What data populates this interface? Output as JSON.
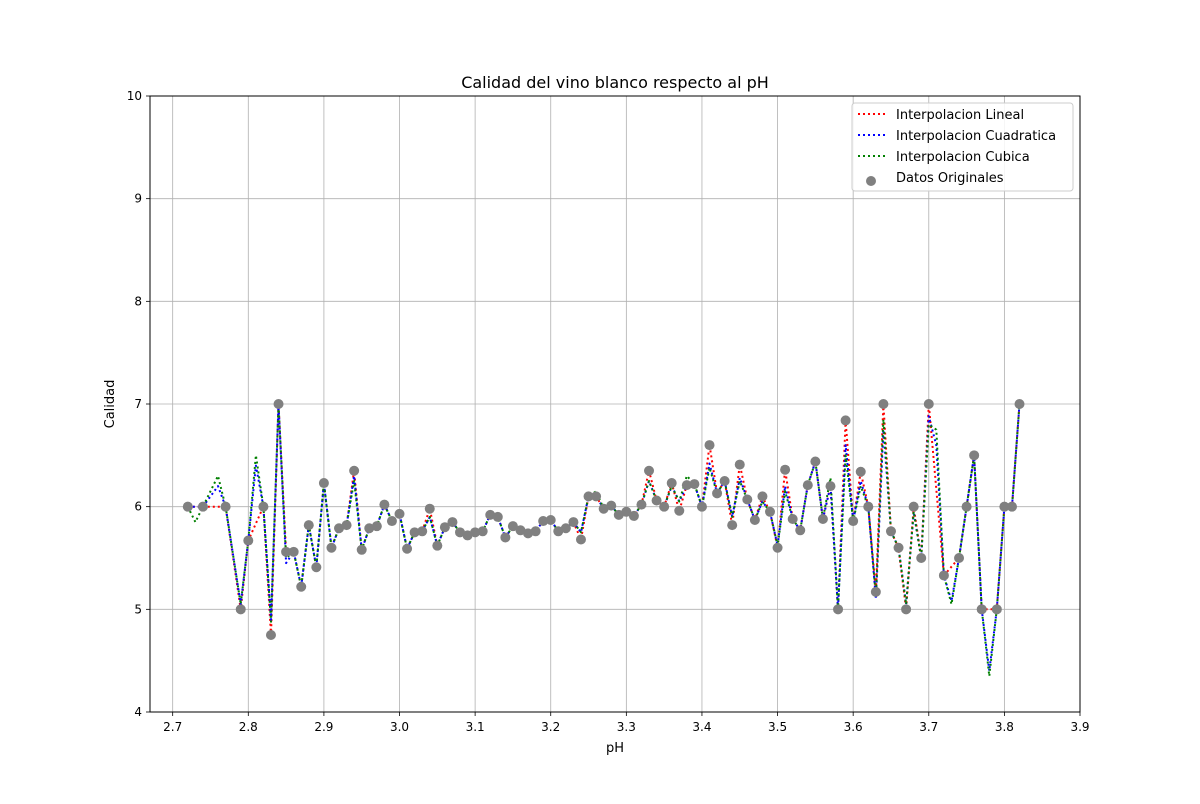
{
  "chart_data": {
    "type": "line",
    "title": "Calidad del vino blanco respecto al pH",
    "xlabel": "pH",
    "ylabel": "Calidad",
    "xlim": [
      2.67,
      3.9
    ],
    "ylim": [
      4,
      10
    ],
    "x_ticks": [
      "2.7",
      "2.8",
      "2.9",
      "3.0",
      "3.1",
      "3.2",
      "3.3",
      "3.4",
      "3.5",
      "3.6",
      "3.7",
      "3.8",
      "3.9"
    ],
    "y_ticks": [
      "4",
      "5",
      "6",
      "7",
      "8",
      "9",
      "10"
    ],
    "grid": true,
    "legend_position": "top-right",
    "series": [
      {
        "name": "Interpolacion Lineal",
        "style": "dotted-line",
        "color": "#ff0000",
        "x": [
          2.72,
          2.74,
          2.77,
          2.79,
          2.8,
          2.82,
          2.83,
          2.84,
          2.85,
          2.86,
          2.87,
          2.88,
          2.89,
          2.9,
          2.91,
          2.92,
          2.93,
          2.94,
          2.95,
          2.96,
          2.97,
          2.98,
          2.99,
          3.0,
          3.01,
          3.02,
          3.03,
          3.04,
          3.05,
          3.06,
          3.07,
          3.08,
          3.09,
          3.1,
          3.11,
          3.12,
          3.13,
          3.14,
          3.15,
          3.16,
          3.17,
          3.18,
          3.19,
          3.2,
          3.21,
          3.22,
          3.23,
          3.24,
          3.25,
          3.26,
          3.27,
          3.28,
          3.29,
          3.3,
          3.31,
          3.32,
          3.33,
          3.34,
          3.35,
          3.36,
          3.37,
          3.38,
          3.39,
          3.4,
          3.41,
          3.42,
          3.43,
          3.44,
          3.45,
          3.46,
          3.47,
          3.48,
          3.49,
          3.5,
          3.51,
          3.52,
          3.53,
          3.54,
          3.55,
          3.56,
          3.57,
          3.58,
          3.59,
          3.6,
          3.61,
          3.62,
          3.63,
          3.64,
          3.65,
          3.66,
          3.67,
          3.68,
          3.69,
          3.7,
          3.72,
          3.74,
          3.75,
          3.76,
          3.77,
          3.79,
          3.8,
          3.81,
          3.82
        ],
        "y": [
          6.0,
          6.0,
          6.0,
          5.0,
          5.67,
          6.0,
          4.75,
          7.0,
          5.56,
          5.56,
          5.22,
          5.82,
          5.41,
          6.23,
          5.6,
          5.79,
          5.82,
          6.35,
          5.58,
          5.79,
          5.81,
          6.02,
          5.86,
          5.93,
          5.59,
          5.75,
          5.76,
          5.98,
          5.62,
          5.8,
          5.85,
          5.75,
          5.72,
          5.75,
          5.76,
          5.92,
          5.9,
          5.7,
          5.81,
          5.77,
          5.74,
          5.76,
          5.86,
          5.87,
          5.76,
          5.79,
          5.85,
          5.68,
          6.1,
          6.1,
          5.98,
          6.01,
          5.92,
          5.95,
          5.91,
          6.02,
          6.35,
          6.06,
          6.0,
          6.23,
          5.96,
          6.21,
          6.22,
          6.0,
          6.6,
          6.13,
          6.25,
          5.82,
          6.41,
          6.07,
          5.87,
          6.1,
          5.95,
          5.6,
          6.36,
          5.88,
          5.77,
          6.21,
          6.44,
          5.88,
          6.2,
          5.0,
          6.84,
          5.86,
          6.34,
          6.0,
          5.17,
          7.0,
          5.76,
          5.6,
          5.0,
          6.0,
          5.5,
          7.0,
          5.33,
          5.5,
          6.0,
          6.5,
          5.0,
          5.0,
          6.0,
          6.0,
          7.0
        ]
      },
      {
        "name": "Interpolacion Cuadratica",
        "style": "dotted-line",
        "color": "#0000ff",
        "x": [
          2.72,
          2.74,
          2.76,
          2.77,
          2.79,
          2.8,
          2.81,
          2.82,
          2.83,
          2.84,
          2.85,
          2.86,
          2.87,
          2.88,
          2.89,
          2.9,
          2.91,
          2.92,
          2.93,
          2.94,
          2.95,
          2.96,
          2.97,
          2.98,
          2.99,
          3.0,
          3.01,
          3.02,
          3.03,
          3.04,
          3.05,
          3.06,
          3.07,
          3.08,
          3.09,
          3.1,
          3.11,
          3.12,
          3.13,
          3.14,
          3.15,
          3.16,
          3.17,
          3.18,
          3.19,
          3.2,
          3.21,
          3.22,
          3.23,
          3.24,
          3.25,
          3.26,
          3.27,
          3.28,
          3.29,
          3.3,
          3.31,
          3.32,
          3.33,
          3.34,
          3.35,
          3.36,
          3.37,
          3.38,
          3.39,
          3.4,
          3.41,
          3.42,
          3.43,
          3.44,
          3.45,
          3.46,
          3.47,
          3.48,
          3.49,
          3.5,
          3.51,
          3.52,
          3.53,
          3.54,
          3.55,
          3.56,
          3.57,
          3.58,
          3.59,
          3.6,
          3.61,
          3.62,
          3.63,
          3.64,
          3.65,
          3.66,
          3.67,
          3.68,
          3.69,
          3.7,
          3.71,
          3.72,
          3.73,
          3.74,
          3.75,
          3.76,
          3.77,
          3.78,
          3.79,
          3.8,
          3.81,
          3.82
        ],
        "y": [
          6.0,
          6.0,
          6.2,
          6.0,
          5.05,
          5.67,
          6.4,
          6.0,
          4.9,
          7.0,
          5.45,
          5.56,
          5.22,
          5.82,
          5.41,
          6.23,
          5.6,
          5.79,
          5.82,
          6.3,
          5.58,
          5.79,
          5.81,
          6.02,
          5.86,
          5.93,
          5.59,
          5.75,
          5.76,
          5.9,
          5.62,
          5.8,
          5.85,
          5.75,
          5.72,
          5.75,
          5.76,
          5.92,
          5.9,
          5.7,
          5.81,
          5.77,
          5.74,
          5.76,
          5.86,
          5.87,
          5.76,
          5.79,
          5.85,
          5.75,
          6.1,
          6.1,
          5.98,
          6.01,
          5.92,
          5.95,
          5.91,
          6.02,
          6.25,
          6.06,
          6.0,
          6.2,
          6.05,
          6.21,
          6.22,
          6.0,
          6.42,
          6.13,
          6.25,
          5.9,
          6.28,
          6.07,
          5.87,
          6.05,
          5.95,
          5.62,
          6.2,
          5.88,
          5.77,
          6.21,
          6.44,
          5.88,
          6.2,
          5.0,
          6.6,
          5.86,
          6.25,
          6.0,
          5.1,
          6.75,
          5.76,
          5.6,
          5.05,
          5.95,
          5.5,
          6.88,
          6.6,
          5.33,
          5.08,
          5.5,
          6.0,
          6.5,
          5.0,
          4.4,
          5.0,
          6.0,
          6.0,
          7.0
        ]
      },
      {
        "name": "Interpolacion Cubica",
        "style": "dotted-line",
        "color": "#008000",
        "x": [
          2.72,
          2.73,
          2.74,
          2.76,
          2.77,
          2.79,
          2.8,
          2.81,
          2.82,
          2.83,
          2.84,
          2.85,
          2.86,
          2.87,
          2.88,
          2.89,
          2.9,
          2.91,
          2.92,
          2.93,
          2.94,
          2.95,
          2.96,
          2.97,
          2.98,
          2.99,
          3.0,
          3.01,
          3.02,
          3.03,
          3.04,
          3.05,
          3.06,
          3.07,
          3.08,
          3.09,
          3.1,
          3.11,
          3.12,
          3.13,
          3.14,
          3.15,
          3.16,
          3.17,
          3.18,
          3.19,
          3.2,
          3.21,
          3.22,
          3.23,
          3.24,
          3.25,
          3.26,
          3.27,
          3.28,
          3.29,
          3.3,
          3.31,
          3.32,
          3.33,
          3.34,
          3.35,
          3.36,
          3.37,
          3.38,
          3.39,
          3.4,
          3.41,
          3.42,
          3.43,
          3.44,
          3.45,
          3.46,
          3.47,
          3.48,
          3.49,
          3.5,
          3.51,
          3.52,
          3.53,
          3.54,
          3.55,
          3.56,
          3.57,
          3.58,
          3.59,
          3.6,
          3.61,
          3.62,
          3.63,
          3.64,
          3.65,
          3.66,
          3.67,
          3.68,
          3.69,
          3.7,
          3.71,
          3.72,
          3.73,
          3.74,
          3.75,
          3.76,
          3.77,
          3.78,
          3.79,
          3.8,
          3.81,
          3.82
        ],
        "y": [
          6.0,
          5.85,
          6.0,
          6.3,
          6.0,
          5.05,
          5.67,
          6.5,
          6.0,
          4.88,
          7.0,
          5.5,
          5.56,
          5.22,
          5.82,
          5.41,
          6.23,
          5.6,
          5.79,
          5.82,
          6.25,
          5.58,
          5.79,
          5.81,
          6.02,
          5.86,
          5.93,
          5.59,
          5.75,
          5.76,
          5.9,
          5.62,
          5.8,
          5.85,
          5.75,
          5.72,
          5.75,
          5.76,
          5.92,
          5.9,
          5.7,
          5.81,
          5.77,
          5.74,
          5.76,
          5.86,
          5.87,
          5.76,
          5.79,
          5.85,
          5.75,
          6.1,
          6.15,
          5.98,
          6.01,
          5.92,
          5.95,
          5.91,
          6.02,
          6.25,
          6.06,
          6.0,
          6.2,
          6.05,
          6.3,
          6.22,
          6.0,
          6.38,
          6.13,
          6.25,
          5.9,
          6.25,
          6.07,
          5.87,
          6.05,
          5.95,
          5.62,
          6.15,
          5.88,
          5.77,
          6.21,
          6.44,
          5.88,
          6.28,
          5.0,
          6.5,
          5.86,
          6.2,
          6.0,
          5.12,
          6.85,
          5.76,
          5.6,
          5.05,
          5.95,
          5.5,
          6.8,
          6.75,
          5.33,
          5.05,
          5.5,
          6.0,
          6.5,
          5.0,
          4.35,
          5.0,
          6.0,
          6.0,
          7.0
        ]
      },
      {
        "name": "Datos Originales",
        "style": "scatter",
        "color": "#808080",
        "x": [
          2.72,
          2.74,
          2.77,
          2.79,
          2.8,
          2.82,
          2.83,
          2.84,
          2.85,
          2.86,
          2.87,
          2.88,
          2.89,
          2.9,
          2.91,
          2.92,
          2.93,
          2.94,
          2.95,
          2.96,
          2.97,
          2.98,
          2.99,
          3.0,
          3.01,
          3.02,
          3.03,
          3.04,
          3.05,
          3.06,
          3.07,
          3.08,
          3.09,
          3.1,
          3.11,
          3.12,
          3.13,
          3.14,
          3.15,
          3.16,
          3.17,
          3.18,
          3.19,
          3.2,
          3.21,
          3.22,
          3.23,
          3.24,
          3.25,
          3.26,
          3.27,
          3.28,
          3.29,
          3.3,
          3.31,
          3.32,
          3.33,
          3.34,
          3.35,
          3.36,
          3.37,
          3.38,
          3.39,
          3.4,
          3.41,
          3.42,
          3.43,
          3.44,
          3.45,
          3.46,
          3.47,
          3.48,
          3.49,
          3.5,
          3.51,
          3.52,
          3.53,
          3.54,
          3.55,
          3.56,
          3.57,
          3.58,
          3.59,
          3.6,
          3.61,
          3.62,
          3.63,
          3.64,
          3.65,
          3.66,
          3.67,
          3.68,
          3.69,
          3.7,
          3.72,
          3.74,
          3.75,
          3.76,
          3.77,
          3.79,
          3.8,
          3.81,
          3.82
        ],
        "y": [
          6.0,
          6.0,
          6.0,
          5.0,
          5.67,
          6.0,
          4.75,
          7.0,
          5.56,
          5.56,
          5.22,
          5.82,
          5.41,
          6.23,
          5.6,
          5.79,
          5.82,
          6.35,
          5.58,
          5.79,
          5.81,
          6.02,
          5.86,
          5.93,
          5.59,
          5.75,
          5.76,
          5.98,
          5.62,
          5.8,
          5.85,
          5.75,
          5.72,
          5.75,
          5.76,
          5.92,
          5.9,
          5.7,
          5.81,
          5.77,
          5.74,
          5.76,
          5.86,
          5.87,
          5.76,
          5.79,
          5.85,
          5.68,
          6.1,
          6.1,
          5.98,
          6.01,
          5.92,
          5.95,
          5.91,
          6.02,
          6.35,
          6.06,
          6.0,
          6.23,
          5.96,
          6.21,
          6.22,
          6.0,
          6.6,
          6.13,
          6.25,
          5.82,
          6.41,
          6.07,
          5.87,
          6.1,
          5.95,
          5.6,
          6.36,
          5.88,
          5.77,
          6.21,
          6.44,
          5.88,
          6.2,
          5.0,
          6.84,
          5.86,
          6.34,
          6.0,
          5.17,
          7.0,
          5.76,
          5.6,
          5.0,
          6.0,
          5.5,
          7.0,
          5.33,
          5.5,
          6.0,
          6.5,
          5.0,
          5.0,
          6.0,
          6.0,
          7.0
        ]
      }
    ]
  }
}
